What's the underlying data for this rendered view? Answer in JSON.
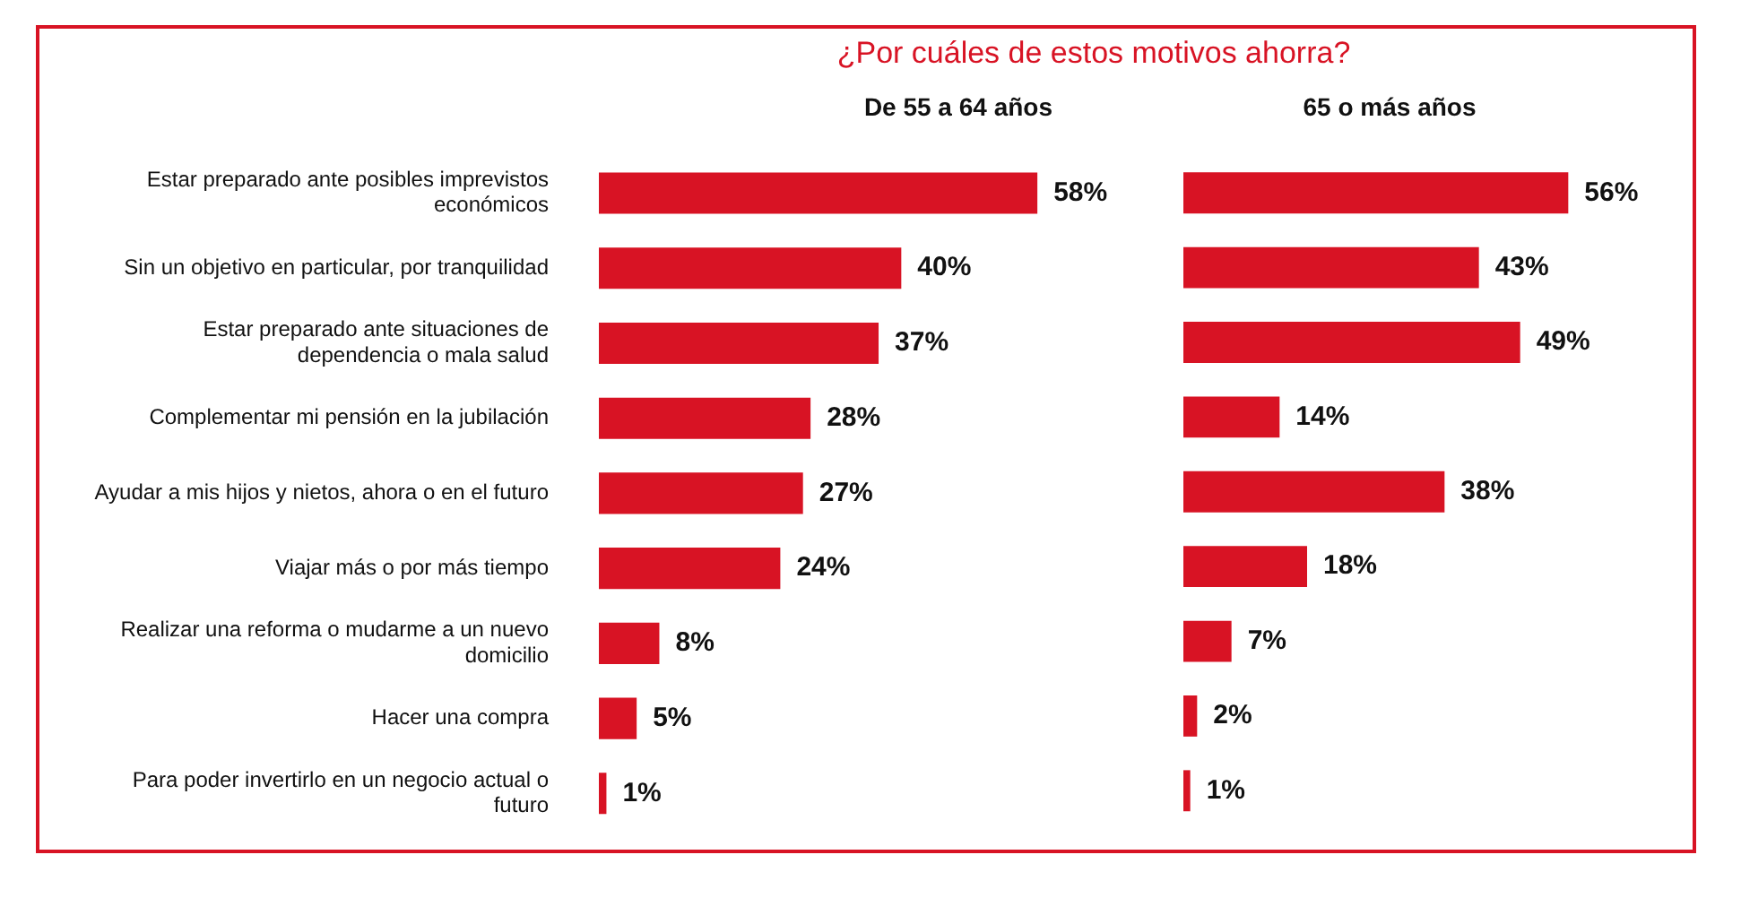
{
  "chart_data": [
    {
      "type": "bar",
      "orientation": "horizontal",
      "title": "¿Por cuáles de estos motivos ahorra?",
      "subtitle": "De 55 a 64 años",
      "categories": [
        "Estar preparado ante posibles imprevistos económicos",
        "Sin un objetivo en particular, por tranquilidad",
        "Estar preparado ante situaciones de dependencia o mala salud",
        "Complementar mi pensión en la jubilación",
        "Ayudar a mis hijos y nietos, ahora o en el futuro",
        "Viajar más o por más tiempo",
        "Realizar una reforma o mudarme a un nuevo domicilio",
        "Hacer una compra",
        "Para poder invertirlo en un negocio actual o futuro"
      ],
      "values": [
        58,
        40,
        37,
        28,
        27,
        24,
        8,
        5,
        1
      ],
      "value_labels": [
        "58%",
        "40%",
        "37%",
        "28%",
        "27%",
        "24%",
        "8%",
        "5%",
        "1%"
      ],
      "color": "#d81324",
      "tick_labels": "y"
    },
    {
      "type": "bar",
      "orientation": "horizontal",
      "subtitle": "65 o más años",
      "categories": [
        null,
        null,
        null,
        null,
        null,
        null,
        null,
        null,
        null
      ],
      "values": [
        56,
        43,
        49,
        14,
        38,
        18,
        7,
        2,
        1
      ],
      "value_labels": [
        "56%",
        "43%",
        "49%",
        "14%",
        "38%",
        "18%",
        "7%",
        "2%",
        "1%"
      ],
      "color": "#d81324",
      "tick_labels": false
    }
  ]
}
